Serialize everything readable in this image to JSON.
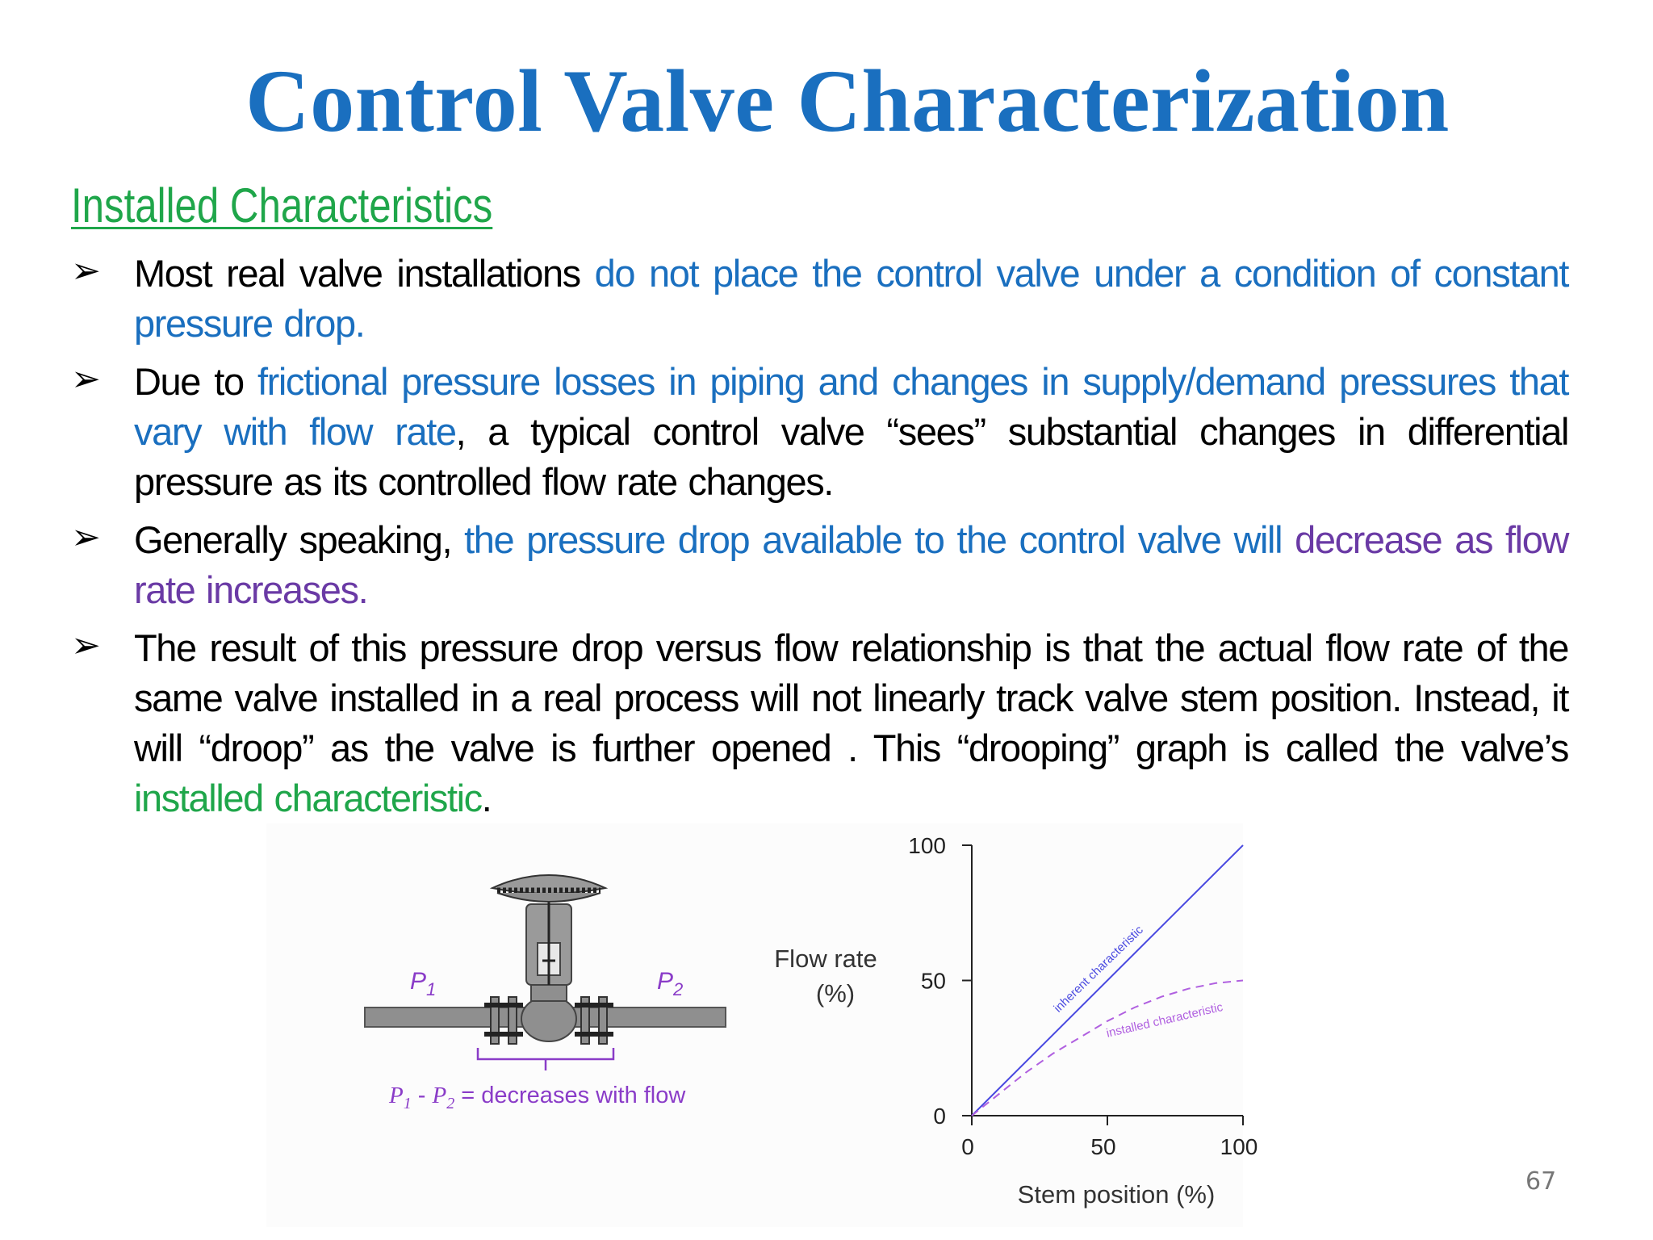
{
  "title": "Control Valve Characterization",
  "subtitle": "Installed Characteristics",
  "bullets": [
    {
      "parts": [
        {
          "text": "Most real valve installations ",
          "color": "black"
        },
        {
          "text": "do not place the control valve under a condition of constant pressure drop.",
          "color": "blue"
        }
      ]
    },
    {
      "parts": [
        {
          "text": "Due to ",
          "color": "black"
        },
        {
          "text": "frictional pressure losses in piping and changes in supply/demand pressures that vary with flow rate",
          "color": "blue"
        },
        {
          "text": ", a typical control valve “sees” substantial changes in differential pressure as its controlled flow rate changes.",
          "color": "black"
        }
      ]
    },
    {
      "parts": [
        {
          "text": "Generally speaking, ",
          "color": "black"
        },
        {
          "text": "the pressure drop available to the control valve will ",
          "color": "blue"
        },
        {
          "text": "decrease as flow rate increases.",
          "color": "purple"
        }
      ]
    },
    {
      "parts": [
        {
          "text": "The result of this pressure drop versus flow relationship is that the actual flow rate of the same valve installed in a real process will not linearly track valve stem position. Instead, it will “droop” as the valve is further opened . This “drooping” graph is called the valve’s ",
          "color": "black"
        },
        {
          "text": "installed characteristic",
          "color": "green"
        },
        {
          "text": ".",
          "color": "black"
        }
      ]
    }
  ],
  "valve_diagram": {
    "p1_label": "P",
    "p1_sub": "1",
    "p2_label": "P",
    "p2_sub": "2",
    "caption_p": "P",
    "caption_sub1": "1",
    "caption_dash": " - ",
    "caption_sub2": "2",
    "caption_rest": " = decreases with flow"
  },
  "chart_data": {
    "type": "line",
    "xlabel": "Stem position (%)",
    "ylabel_line1": "Flow rate",
    "ylabel_line2": "(%)",
    "xlim": [
      0,
      100
    ],
    "ylim": [
      0,
      100
    ],
    "xticks": [
      0,
      50,
      100
    ],
    "yticks": [
      0,
      50,
      100
    ],
    "series": [
      {
        "name": "inherent characteristic",
        "style": "solid",
        "color": "#4a4ae0",
        "x": [
          0,
          100
        ],
        "y": [
          0,
          100
        ]
      },
      {
        "name": "installed characteristic",
        "style": "dashed",
        "color": "#b060e0",
        "x": [
          0,
          10,
          20,
          30,
          40,
          50,
          60,
          70,
          80,
          90,
          100
        ],
        "y": [
          0,
          8,
          16,
          23,
          29,
          35,
          40,
          44,
          47,
          49,
          50
        ]
      }
    ]
  },
  "page_number": "67",
  "colors": {
    "title": "#1a6fbf",
    "subtitle": "#1fa64a",
    "blue": "#1a6fbf",
    "purple": "#6a3aa5",
    "green": "#1fa64a",
    "diagram_label": "#8a3cc8"
  }
}
